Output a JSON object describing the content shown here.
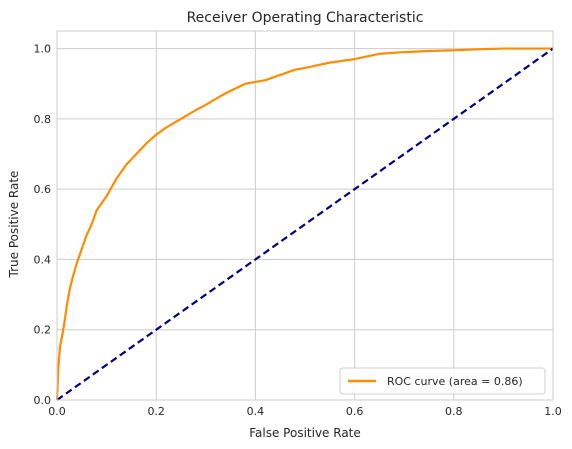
{
  "chart_data": {
    "type": "line",
    "title": "Receiver Operating Characteristic",
    "xlabel": "False Positive Rate",
    "ylabel": "True Positive Rate",
    "xlim": [
      0.0,
      1.0
    ],
    "ylim": [
      0.0,
      1.05
    ],
    "grid": true,
    "legend_position": "lower-right",
    "xticks": [
      0.0,
      0.2,
      0.4,
      0.6,
      0.8,
      1.0
    ],
    "xtick_labels": [
      "0.0",
      "0.2",
      "0.4",
      "0.6",
      "0.8",
      "1.0"
    ],
    "yticks": [
      0.0,
      0.2,
      0.4,
      0.6,
      0.8,
      1.0
    ],
    "ytick_labels": [
      "0.0",
      "0.2",
      "0.4",
      "0.6",
      "0.8",
      "1.0"
    ],
    "series": [
      {
        "name": "ROC curve (area = 0.86)",
        "color": "#ff8c00",
        "style": "solid",
        "x": [
          0.0,
          0.003,
          0.006,
          0.01,
          0.015,
          0.02,
          0.025,
          0.03,
          0.04,
          0.05,
          0.06,
          0.07,
          0.08,
          0.09,
          0.1,
          0.12,
          0.14,
          0.16,
          0.18,
          0.2,
          0.22,
          0.25,
          0.28,
          0.3,
          0.33,
          0.35,
          0.38,
          0.4,
          0.42,
          0.45,
          0.48,
          0.5,
          0.55,
          0.6,
          0.65,
          0.7,
          0.75,
          0.8,
          0.85,
          0.9,
          0.95,
          1.0
        ],
        "y": [
          0.0,
          0.1,
          0.15,
          0.18,
          0.22,
          0.27,
          0.31,
          0.34,
          0.39,
          0.43,
          0.47,
          0.5,
          0.54,
          0.56,
          0.58,
          0.63,
          0.67,
          0.7,
          0.73,
          0.755,
          0.775,
          0.8,
          0.825,
          0.84,
          0.865,
          0.88,
          0.9,
          0.905,
          0.91,
          0.925,
          0.94,
          0.945,
          0.96,
          0.97,
          0.985,
          0.99,
          0.993,
          0.995,
          0.998,
          1.0,
          1.0,
          1.0
        ]
      },
      {
        "name": "",
        "color": "#000080",
        "style": "dashed",
        "x": [
          0.0,
          1.0
        ],
        "y": [
          0.0,
          1.0
        ]
      }
    ]
  }
}
